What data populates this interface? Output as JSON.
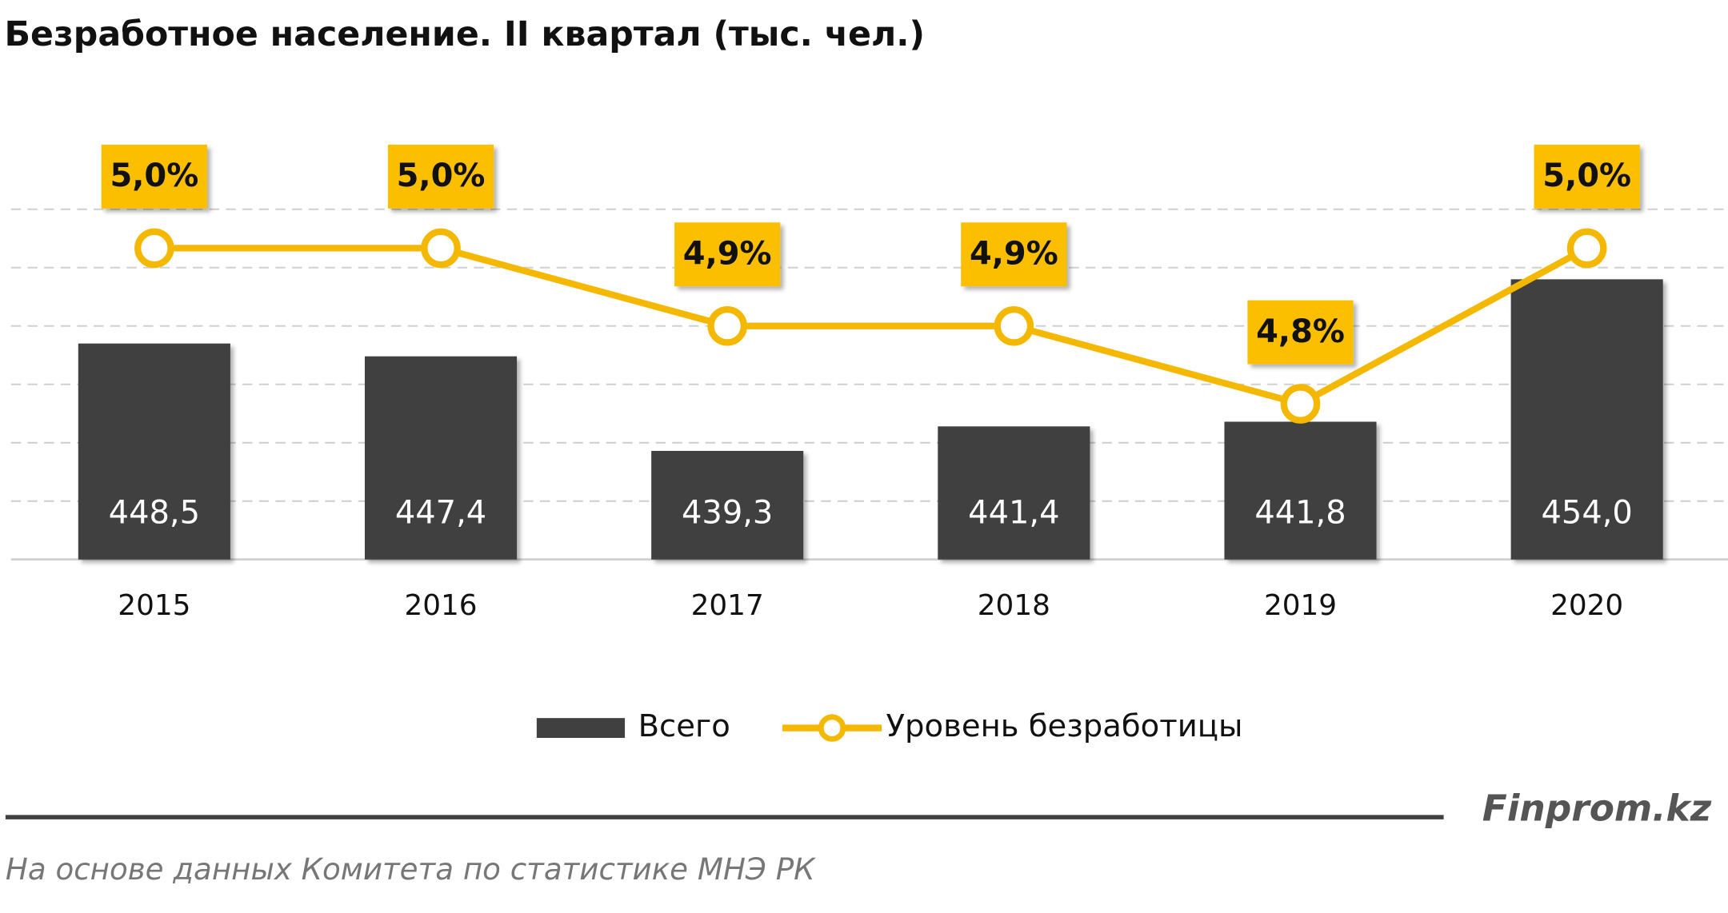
{
  "chart_data": {
    "type": "combo",
    "title": "Безработное население. II квартал (тыс. чел.)",
    "categories": [
      "2015",
      "2016",
      "2017",
      "2018",
      "2019",
      "2020"
    ],
    "series": [
      {
        "name": "Всего",
        "type": "bar",
        "color": "#404040",
        "values": [
          448.5,
          447.4,
          439.3,
          441.4,
          441.8,
          454.0
        ],
        "value_labels": [
          "448,5",
          "447,4",
          "439,3",
          "441,4",
          "441,8",
          "454,0"
        ]
      },
      {
        "name": "Уровень безработицы",
        "type": "line",
        "axis": "y2",
        "color": "#f5b800",
        "values": [
          5.0,
          5.0,
          4.9,
          4.9,
          4.8,
          5.0
        ],
        "value_labels": [
          "5,0%",
          "5,0%",
          "4,9%",
          "4,9%",
          "4,8%",
          "5,0%"
        ]
      }
    ],
    "ylim": [
      430,
      460
    ],
    "yticks": [
      435,
      440,
      445,
      450,
      455,
      460
    ],
    "y2lim": [
      4.6,
      5.05
    ],
    "grid": true,
    "show_tick_labels": false,
    "brand": "Finprom.kz",
    "source": "На основе данных  Комитета по статистике МНЭ РК"
  }
}
